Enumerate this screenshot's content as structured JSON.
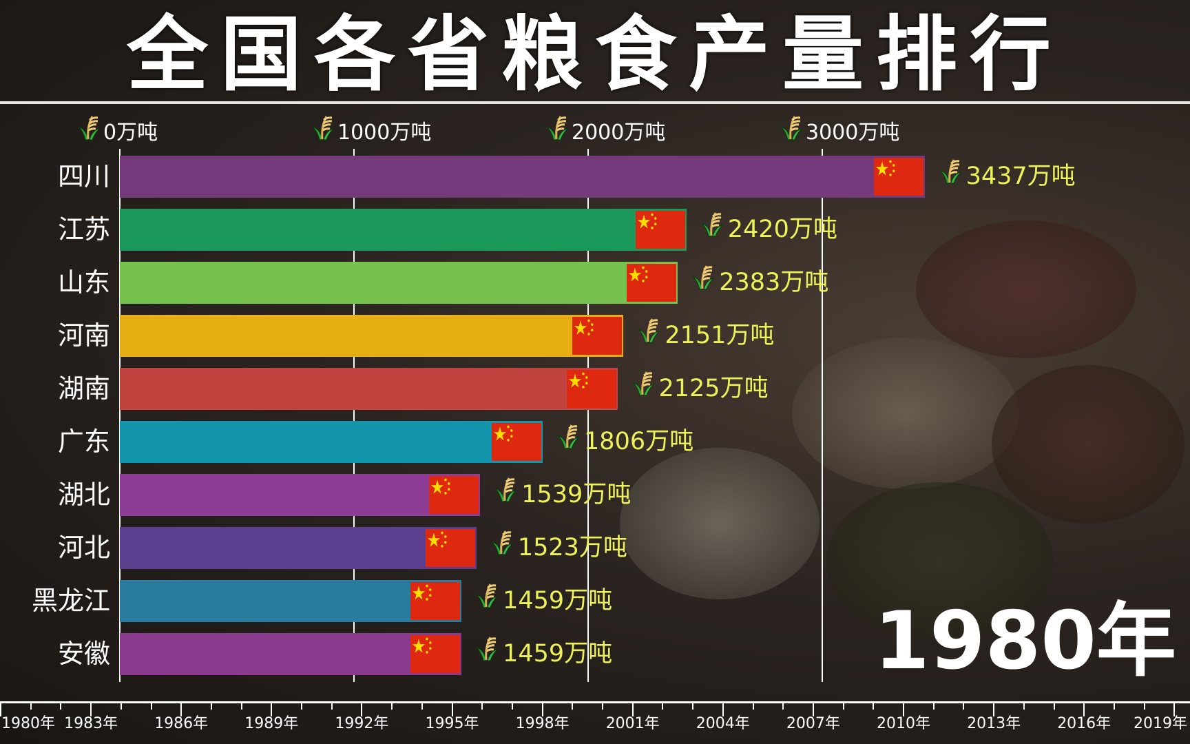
{
  "title": "全国各省粮食产量排行",
  "current_year": "1980年",
  "colors": {
    "value_label": "#eef25a",
    "flag": "#de2910",
    "flag_star": "#ffde00"
  },
  "chart_data": {
    "type": "bar",
    "orientation": "horizontal",
    "unit": "万吨",
    "xlim": [
      0,
      4300
    ],
    "x_ticks": [
      0,
      1000,
      2000,
      3000
    ],
    "x_tick_labels": [
      "0万吨",
      "1000万吨",
      "2000万吨",
      "3000万吨"
    ],
    "grid": true,
    "categories": [
      "四川",
      "江苏",
      "山东",
      "河南",
      "湖南",
      "广东",
      "湖北",
      "河北",
      "黑龙江",
      "安徽"
    ],
    "values": [
      3437,
      2420,
      2383,
      2151,
      2125,
      1806,
      1539,
      1523,
      1459,
      1459
    ],
    "value_labels": [
      "3437万吨",
      "2420万吨",
      "2383万吨",
      "2151万吨",
      "2125万吨",
      "1806万吨",
      "1539万吨",
      "1523万吨",
      "1459万吨",
      "1459万吨"
    ],
    "bar_colors": [
      "#743a7c",
      "#1a995a",
      "#77c24f",
      "#e6ae12",
      "#c0433f",
      "#1295ad",
      "#8d3d95",
      "#5c3f8f",
      "#2a7c9f",
      "#8a3a8c"
    ]
  },
  "timeline": {
    "years": [
      "1980年",
      "1983年",
      "1986年",
      "1989年",
      "1992年",
      "1995年",
      "1998年",
      "2001年",
      "2004年",
      "2007年",
      "2010年",
      "2013年",
      "2016年",
      "2019年"
    ],
    "current": "1980年"
  },
  "icons": {
    "tick": "rice-plant-icon",
    "value": "rice-plant-icon",
    "bar_end": "china-flag-icon"
  }
}
